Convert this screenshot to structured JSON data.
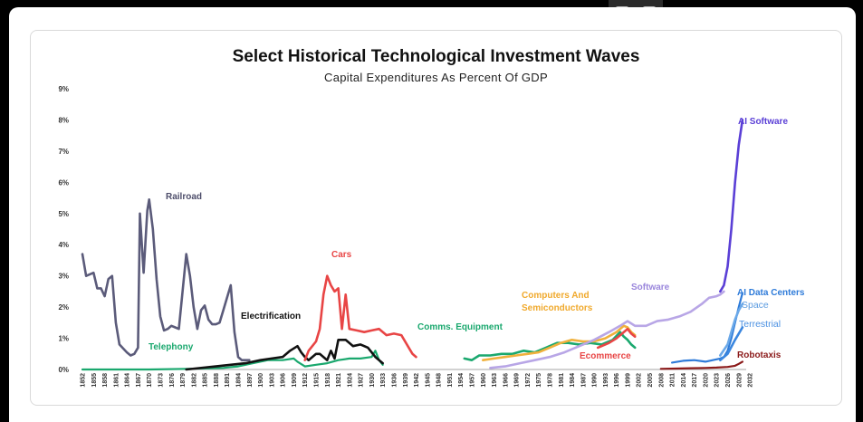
{
  "toolbar": {
    "icons": [
      "collapse-icon",
      "play-video-icon"
    ]
  },
  "chart_data": {
    "type": "line",
    "title": "Select Historical Technological Investment Waves",
    "subtitle": "Capital Expenditures As Percent Of GDP",
    "ylim": [
      0,
      9
    ],
    "y_ticks": [
      "0%",
      "1%",
      "2%",
      "3%",
      "4%",
      "5%",
      "6%",
      "7%",
      "8%",
      "9%"
    ],
    "x_tick_labels": [
      "1852",
      "1855",
      "1858",
      "1861",
      "1864",
      "1867",
      "1870",
      "1873",
      "1876",
      "1879",
      "1882",
      "1885",
      "1888",
      "1891",
      "1894",
      "1897",
      "1900",
      "1903",
      "1906",
      "1909",
      "1912",
      "1915",
      "1918",
      "1921",
      "1924",
      "1927",
      "1930",
      "1933",
      "1936",
      "1939",
      "1942",
      "1945",
      "1948",
      "1951",
      "1954",
      "1957",
      "1960",
      "1963",
      "1966",
      "1969",
      "1972",
      "1975",
      "1978",
      "1981",
      "1984",
      "1987",
      "1990",
      "1993",
      "1996",
      "1999",
      "2002",
      "2005",
      "2008",
      "2011",
      "2014",
      "2017",
      "2020",
      "2023",
      "2026",
      "2029",
      "2032"
    ],
    "series": [
      {
        "name": "Railroad",
        "color": "#5b5b7a",
        "label_color": "#4d4d6a",
        "points": [
          [
            1852,
            3.7
          ],
          [
            1853,
            3.0
          ],
          [
            1855,
            3.1
          ],
          [
            1856,
            2.6
          ],
          [
            1857,
            2.6
          ],
          [
            1858,
            2.35
          ],
          [
            1859,
            2.9
          ],
          [
            1860,
            3.0
          ],
          [
            1861,
            1.5
          ],
          [
            1862,
            0.8
          ],
          [
            1864,
            0.55
          ],
          [
            1865,
            0.45
          ],
          [
            1866,
            0.5
          ],
          [
            1867,
            0.7
          ],
          [
            1867.5,
            5.0
          ],
          [
            1868.5,
            3.1
          ],
          [
            1869.5,
            5.1
          ],
          [
            1870,
            5.45
          ],
          [
            1871,
            4.5
          ],
          [
            1872,
            2.9
          ],
          [
            1873,
            1.7
          ],
          [
            1874,
            1.25
          ],
          [
            1875,
            1.3
          ],
          [
            1876,
            1.4
          ],
          [
            1877,
            1.35
          ],
          [
            1878,
            1.3
          ],
          [
            1879,
            2.5
          ],
          [
            1880,
            3.7
          ],
          [
            1881,
            3.0
          ],
          [
            1882,
            2.0
          ],
          [
            1883,
            1.3
          ],
          [
            1884,
            1.9
          ],
          [
            1885,
            2.05
          ],
          [
            1886,
            1.6
          ],
          [
            1887,
            1.45
          ],
          [
            1888,
            1.45
          ],
          [
            1889,
            1.5
          ],
          [
            1890,
            1.9
          ],
          [
            1891,
            2.3
          ],
          [
            1892,
            2.7
          ],
          [
            1893,
            1.2
          ],
          [
            1894,
            0.4
          ],
          [
            1895,
            0.3
          ],
          [
            1897,
            0.3
          ]
        ]
      },
      {
        "name": "Telephony",
        "color": "#1aa86e",
        "label_color": "#1aa86e",
        "points": [
          [
            1852,
            0
          ],
          [
            1870,
            0
          ],
          [
            1880,
            0.02
          ],
          [
            1890,
            0.05
          ],
          [
            1894,
            0.1
          ],
          [
            1898,
            0.2
          ],
          [
            1902,
            0.3
          ],
          [
            1906,
            0.3
          ],
          [
            1909,
            0.35
          ],
          [
            1910,
            0.25
          ],
          [
            1912,
            0.1
          ],
          [
            1915,
            0.15
          ],
          [
            1918,
            0.2
          ],
          [
            1921,
            0.3
          ],
          [
            1924,
            0.35
          ],
          [
            1927,
            0.35
          ],
          [
            1930,
            0.4
          ],
          [
            1931,
            0.6
          ],
          [
            1932,
            0.3
          ],
          [
            1933,
            0.15
          ]
        ]
      },
      {
        "name": "Electrification",
        "color": "#111111",
        "label_color": "#111111",
        "points": [
          [
            1880,
            0
          ],
          [
            1888,
            0.1
          ],
          [
            1892,
            0.15
          ],
          [
            1896,
            0.2
          ],
          [
            1900,
            0.3
          ],
          [
            1903,
            0.35
          ],
          [
            1906,
            0.4
          ],
          [
            1908,
            0.6
          ],
          [
            1910,
            0.75
          ],
          [
            1911,
            0.55
          ],
          [
            1912,
            0.4
          ],
          [
            1913,
            0.3
          ],
          [
            1915,
            0.5
          ],
          [
            1916,
            0.5
          ],
          [
            1918,
            0.3
          ],
          [
            1919,
            0.6
          ],
          [
            1920,
            0.35
          ],
          [
            1921,
            0.95
          ],
          [
            1923,
            0.95
          ],
          [
            1925,
            0.75
          ],
          [
            1927,
            0.8
          ],
          [
            1929,
            0.7
          ],
          [
            1931,
            0.4
          ],
          [
            1933,
            0.2
          ]
        ]
      },
      {
        "name": "Cars",
        "color": "#e84545",
        "label_color": "#e84545",
        "points": [
          [
            1912,
            0.3
          ],
          [
            1913,
            0.6
          ],
          [
            1915,
            0.9
          ],
          [
            1916,
            1.3
          ],
          [
            1917,
            2.4
          ],
          [
            1918,
            3.0
          ],
          [
            1919,
            2.7
          ],
          [
            1920,
            2.5
          ],
          [
            1921,
            2.6
          ],
          [
            1922,
            1.3
          ],
          [
            1923,
            2.4
          ],
          [
            1924,
            1.3
          ],
          [
            1926,
            1.25
          ],
          [
            1928,
            1.2
          ],
          [
            1930,
            1.25
          ],
          [
            1932,
            1.3
          ],
          [
            1934,
            1.1
          ],
          [
            1936,
            1.15
          ],
          [
            1938,
            1.1
          ],
          [
            1940,
            0.7
          ],
          [
            1941,
            0.5
          ],
          [
            1942,
            0.4
          ]
        ]
      },
      {
        "name": "Comms. Equipment",
        "color": "#1aa86e",
        "label_color": "#1aa86e",
        "points": [
          [
            1955,
            0.35
          ],
          [
            1957,
            0.3
          ],
          [
            1959,
            0.45
          ],
          [
            1962,
            0.45
          ],
          [
            1965,
            0.5
          ],
          [
            1968,
            0.5
          ],
          [
            1971,
            0.6
          ],
          [
            1974,
            0.55
          ],
          [
            1977,
            0.7
          ],
          [
            1980,
            0.85
          ],
          [
            1983,
            0.85
          ],
          [
            1986,
            0.8
          ],
          [
            1989,
            0.85
          ],
          [
            1992,
            0.8
          ],
          [
            1995,
            0.95
          ],
          [
            1997,
            1.2
          ],
          [
            1998,
            1.05
          ],
          [
            1999,
            0.95
          ],
          [
            2000,
            0.8
          ],
          [
            2001,
            0.7
          ]
        ]
      },
      {
        "name": "Computers And Semiconductors",
        "color": "#f0b13c",
        "label_color": "#f0a92c",
        "points": [
          [
            1960,
            0.3
          ],
          [
            1963,
            0.35
          ],
          [
            1966,
            0.4
          ],
          [
            1969,
            0.45
          ],
          [
            1972,
            0.5
          ],
          [
            1975,
            0.55
          ],
          [
            1978,
            0.7
          ],
          [
            1981,
            0.85
          ],
          [
            1984,
            0.95
          ],
          [
            1987,
            0.9
          ],
          [
            1990,
            0.9
          ],
          [
            1993,
            1.0
          ],
          [
            1996,
            1.2
          ],
          [
            1998,
            1.4
          ],
          [
            1999,
            1.35
          ],
          [
            2000,
            1.2
          ],
          [
            2001,
            1.1
          ]
        ]
      },
      {
        "name": "Software",
        "color": "#b8a6e6",
        "label_color": "#9a86dc",
        "points": [
          [
            1962,
            0.05
          ],
          [
            1966,
            0.1
          ],
          [
            1970,
            0.2
          ],
          [
            1974,
            0.3
          ],
          [
            1978,
            0.4
          ],
          [
            1982,
            0.55
          ],
          [
            1986,
            0.75
          ],
          [
            1990,
            0.95
          ],
          [
            1994,
            1.2
          ],
          [
            1997,
            1.4
          ],
          [
            1999,
            1.55
          ],
          [
            2001,
            1.4
          ],
          [
            2004,
            1.4
          ],
          [
            2007,
            1.55
          ],
          [
            2010,
            1.6
          ],
          [
            2013,
            1.7
          ],
          [
            2016,
            1.85
          ],
          [
            2019,
            2.1
          ],
          [
            2021,
            2.3
          ],
          [
            2023,
            2.35
          ],
          [
            2024,
            2.4
          ],
          [
            2025,
            2.5
          ]
        ]
      },
      {
        "name": "Ecommerce",
        "color": "#e84545",
        "label_color": "#e84545",
        "points": [
          [
            1991,
            0.7
          ],
          [
            1994,
            0.85
          ],
          [
            1996,
            1.0
          ],
          [
            1998,
            1.2
          ],
          [
            1999,
            1.3
          ],
          [
            2000,
            1.15
          ],
          [
            2001,
            1.05
          ]
        ]
      },
      {
        "name": "AI Software",
        "color": "#5a3fd6",
        "label_color": "#5a3fd6",
        "points": [
          [
            2024,
            2.5
          ],
          [
            2025,
            2.7
          ],
          [
            2026,
            3.3
          ],
          [
            2027,
            4.5
          ],
          [
            2028,
            6.0
          ],
          [
            2029,
            7.2
          ],
          [
            2030,
            8.0
          ]
        ]
      },
      {
        "name": "AI Data Centers",
        "color": "#2e7bd9",
        "label_color": "#2e7bd9",
        "points": [
          [
            2011,
            0.22
          ],
          [
            2014,
            0.28
          ],
          [
            2017,
            0.3
          ],
          [
            2020,
            0.25
          ],
          [
            2022,
            0.3
          ],
          [
            2024,
            0.35
          ],
          [
            2025,
            0.4
          ],
          [
            2026,
            0.6
          ],
          [
            2027,
            1.0
          ],
          [
            2028,
            1.5
          ],
          [
            2029,
            2.0
          ],
          [
            2030,
            2.45
          ]
        ]
      },
      {
        "name": "Space",
        "color": "#6aa8e8",
        "label_color": "#5b9be0",
        "points": [
          [
            2024,
            0.45
          ],
          [
            2026,
            0.8
          ],
          [
            2028,
            1.6
          ],
          [
            2029,
            1.9
          ],
          [
            2030,
            2.1
          ]
        ]
      },
      {
        "name": "Terrestrial",
        "color": "#3a86df",
        "label_color": "#4a90e2",
        "points": [
          [
            2024,
            0.3
          ],
          [
            2026,
            0.5
          ],
          [
            2028,
            0.95
          ],
          [
            2029,
            1.15
          ],
          [
            2030,
            1.35
          ]
        ]
      },
      {
        "name": "Robotaxis",
        "color": "#8b1a1a",
        "label_color": "#8b1a1a",
        "points": [
          [
            2008,
            0.02
          ],
          [
            2012,
            0.03
          ],
          [
            2016,
            0.04
          ],
          [
            2020,
            0.05
          ],
          [
            2023,
            0.06
          ],
          [
            2026,
            0.08
          ],
          [
            2028,
            0.12
          ],
          [
            2029,
            0.18
          ],
          [
            2030,
            0.25
          ]
        ]
      }
    ],
    "annotations": [
      {
        "text": "Railroad",
        "series": "Railroad"
      },
      {
        "text": "Telephony",
        "series": "Telephony"
      },
      {
        "text": "Electrification",
        "series": "Electrification"
      },
      {
        "text": "Cars",
        "series": "Cars"
      },
      {
        "text": "Comms. Equipment",
        "series": "Comms. Equipment"
      },
      {
        "text": "Computers And",
        "series": "Computers And Semiconductors"
      },
      {
        "text": "Semiconductors",
        "series": "Computers And Semiconductors"
      },
      {
        "text": "Software",
        "series": "Software"
      },
      {
        "text": "Ecommerce",
        "series": "Ecommerce"
      },
      {
        "text": "AI Software",
        "series": "AI Software"
      },
      {
        "text": "AI Data Centers",
        "series": "AI Data Centers"
      },
      {
        "text": "Space",
        "series": "Space"
      },
      {
        "text": "Terrestrial",
        "series": "Terrestrial"
      },
      {
        "text": "Robotaxis",
        "series": "Robotaxis"
      }
    ]
  }
}
